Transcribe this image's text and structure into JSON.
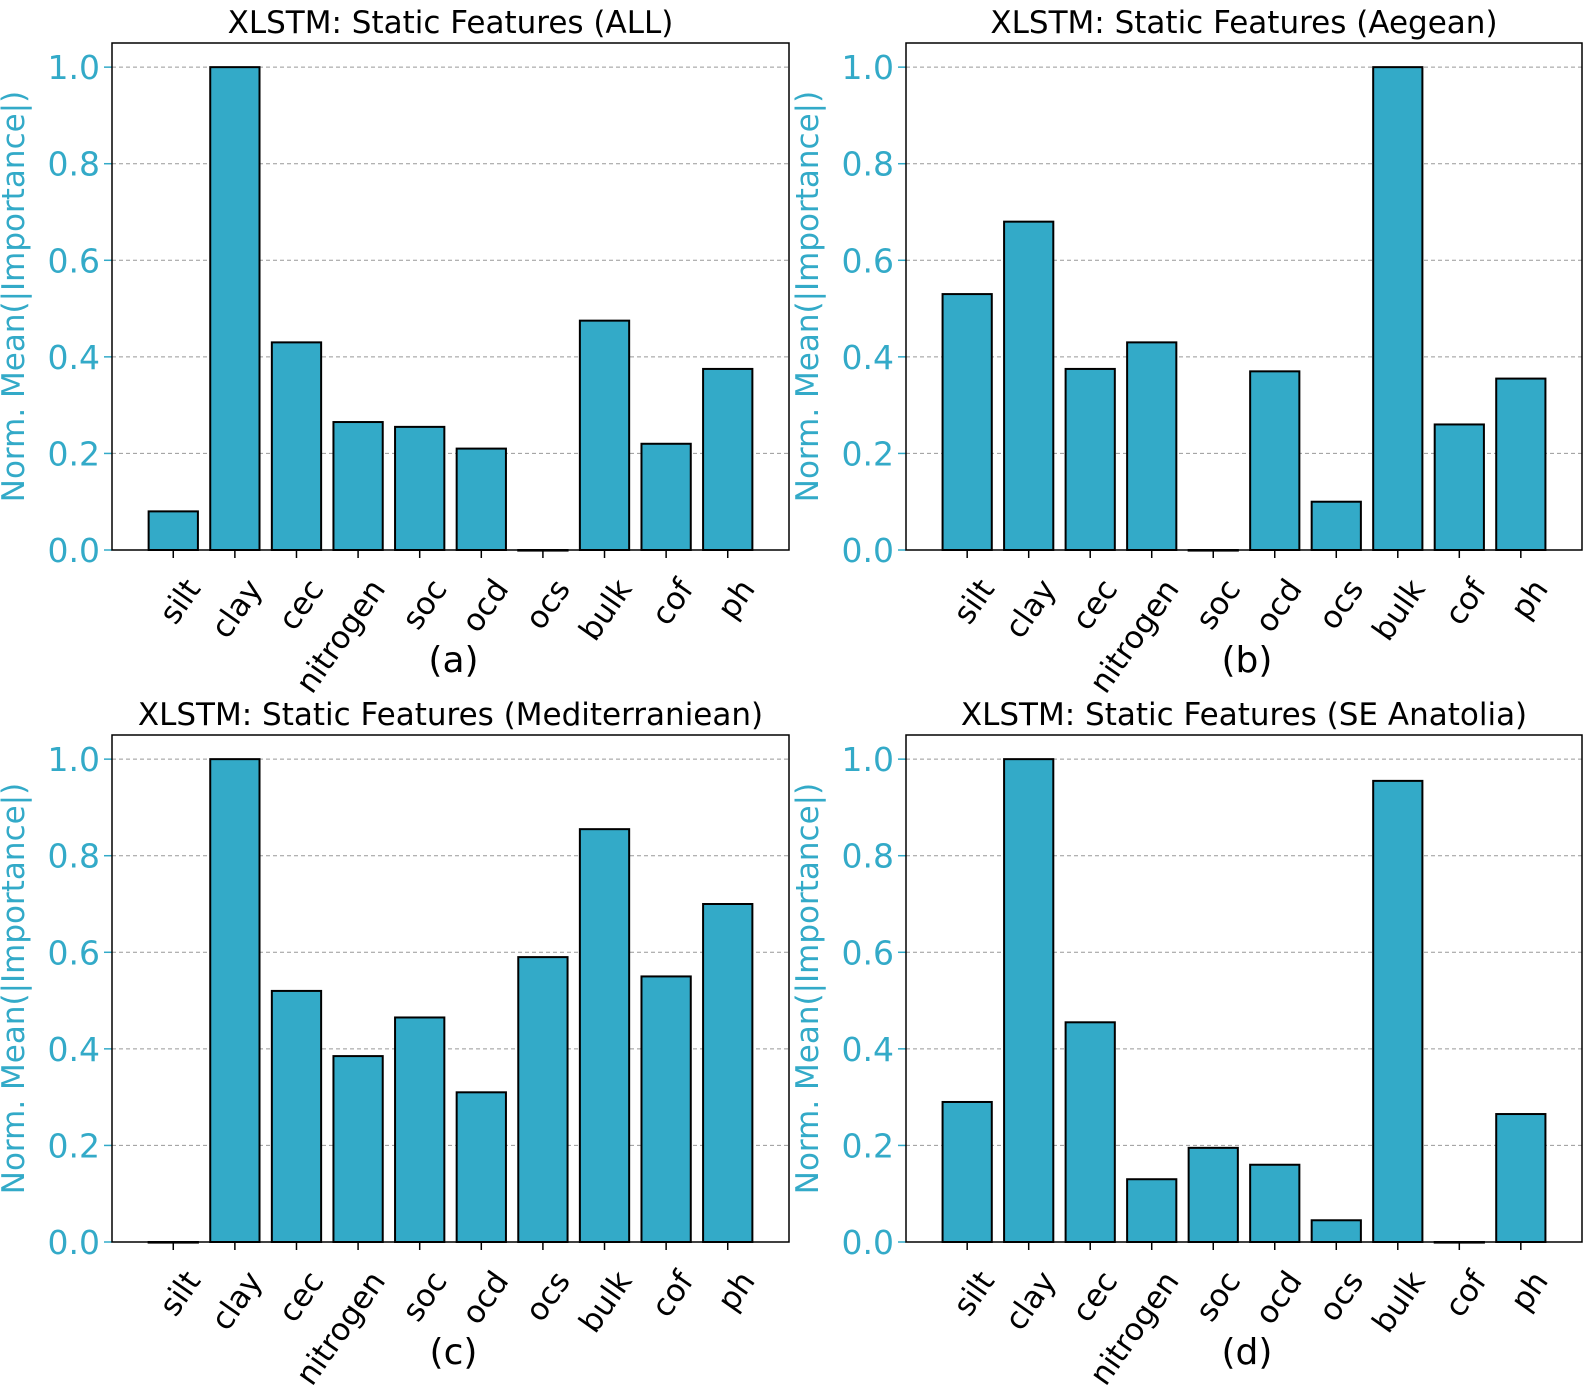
{
  "colors": {
    "bar": "#33aac8",
    "bar_edge": "#000000",
    "axis_accent": "#33aac8",
    "grid": "#999999",
    "text": "#000000"
  },
  "chart_data": [
    {
      "type": "bar",
      "panel_label": "(a)",
      "title": "XLSTM: Static Features (ALL)",
      "xlabel": "",
      "ylabel": "Norm. Mean(|Importance|)",
      "ylim": [
        0,
        1.05
      ],
      "yticks": [
        "0.0",
        "0.2",
        "0.4",
        "0.6",
        "0.8",
        "1.0"
      ],
      "grid": "y-dashed",
      "categories": [
        "silt",
        "clay",
        "cec",
        "nitrogen",
        "soc",
        "ocd",
        "ocs",
        "bulk",
        "cof",
        "ph"
      ],
      "values": [
        0.08,
        1.0,
        0.43,
        0.265,
        0.255,
        0.21,
        0.0,
        0.475,
        0.22,
        0.375
      ]
    },
    {
      "type": "bar",
      "panel_label": "(b)",
      "title": "XLSTM: Static Features (Aegean)",
      "xlabel": "",
      "ylabel": "Norm. Mean(|Importance|)",
      "ylim": [
        0,
        1.05
      ],
      "yticks": [
        "0.0",
        "0.2",
        "0.4",
        "0.6",
        "0.8",
        "1.0"
      ],
      "grid": "y-dashed",
      "categories": [
        "silt",
        "clay",
        "cec",
        "nitrogen",
        "soc",
        "ocd",
        "ocs",
        "bulk",
        "cof",
        "ph"
      ],
      "values": [
        0.53,
        0.68,
        0.375,
        0.43,
        0.0,
        0.37,
        0.1,
        1.0,
        0.26,
        0.355
      ]
    },
    {
      "type": "bar",
      "panel_label": "(c)",
      "title": "XLSTM: Static Features (Mediterraniean)",
      "xlabel": "",
      "ylabel": "Norm. Mean(|Importance|)",
      "ylim": [
        0,
        1.05
      ],
      "yticks": [
        "0.0",
        "0.2",
        "0.4",
        "0.6",
        "0.8",
        "1.0"
      ],
      "grid": "y-dashed",
      "categories": [
        "silt",
        "clay",
        "cec",
        "nitrogen",
        "soc",
        "ocd",
        "ocs",
        "bulk",
        "cof",
        "ph"
      ],
      "values": [
        0.0,
        1.0,
        0.52,
        0.385,
        0.465,
        0.31,
        0.59,
        0.855,
        0.55,
        0.7
      ]
    },
    {
      "type": "bar",
      "panel_label": "(d)",
      "title": "XLSTM: Static Features (SE Anatolia)",
      "xlabel": "",
      "ylabel": "Norm. Mean(|Importance|)",
      "ylim": [
        0,
        1.05
      ],
      "yticks": [
        "0.0",
        "0.2",
        "0.4",
        "0.6",
        "0.8",
        "1.0"
      ],
      "grid": "y-dashed",
      "categories": [
        "silt",
        "clay",
        "cec",
        "nitrogen",
        "soc",
        "ocd",
        "ocs",
        "bulk",
        "cof",
        "ph"
      ],
      "values": [
        0.29,
        1.0,
        0.455,
        0.13,
        0.195,
        0.16,
        0.045,
        0.955,
        0.0,
        0.265
      ]
    }
  ]
}
